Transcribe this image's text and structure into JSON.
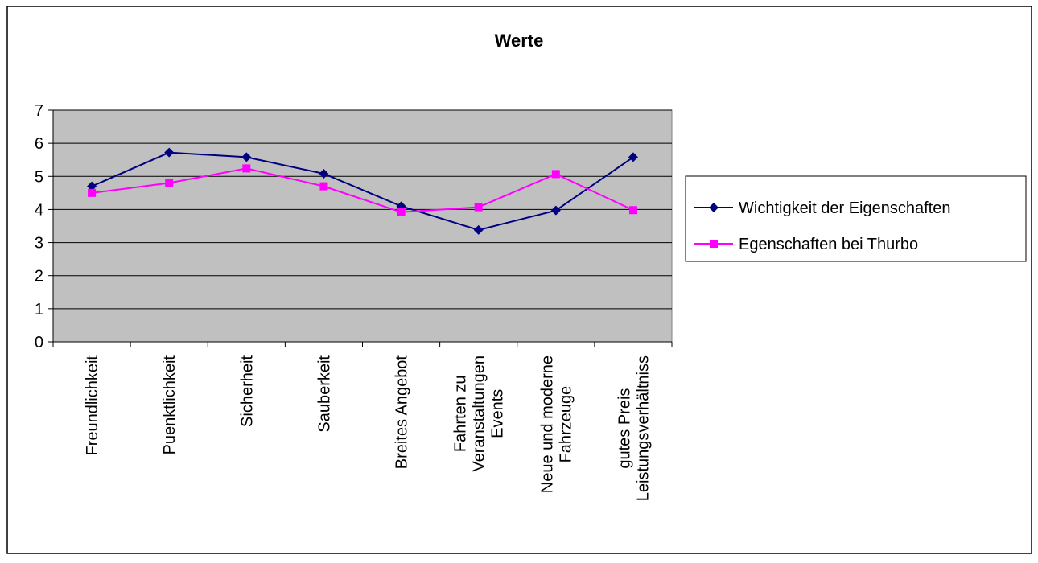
{
  "chart_data": {
    "type": "line",
    "title": "Werte",
    "xlabel": "",
    "ylabel": "",
    "ylim": [
      0,
      7
    ],
    "yticks": [
      0,
      1,
      2,
      3,
      4,
      5,
      6,
      7
    ],
    "grid": true,
    "legend_position": "right",
    "categories": [
      [
        "Freundlichkeit"
      ],
      [
        "Puenktlichkeit"
      ],
      [
        "Sicherheit"
      ],
      [
        "Sauberkeit"
      ],
      [
        "Breites Angebot"
      ],
      [
        "Fahrten zu",
        "Veranstaltungen",
        "Events"
      ],
      [
        "Neue und moderne",
        "Fahrzeuge"
      ],
      [
        "gutes Preis",
        "Leistungsverhältniss"
      ]
    ],
    "series": [
      {
        "name": "Wichtigkeit der Eigenschaften",
        "color": "#000080",
        "marker": "diamond",
        "values": [
          4.7,
          5.72,
          5.58,
          5.08,
          4.1,
          3.38,
          3.97,
          5.58
        ]
      },
      {
        "name": "Egenschaften bei Thurbo",
        "color": "#FF00FF",
        "marker": "square",
        "values": [
          4.5,
          4.8,
          5.24,
          4.7,
          3.92,
          4.07,
          5.07,
          3.98
        ]
      }
    ],
    "plot_background": "#C0C0C0"
  }
}
